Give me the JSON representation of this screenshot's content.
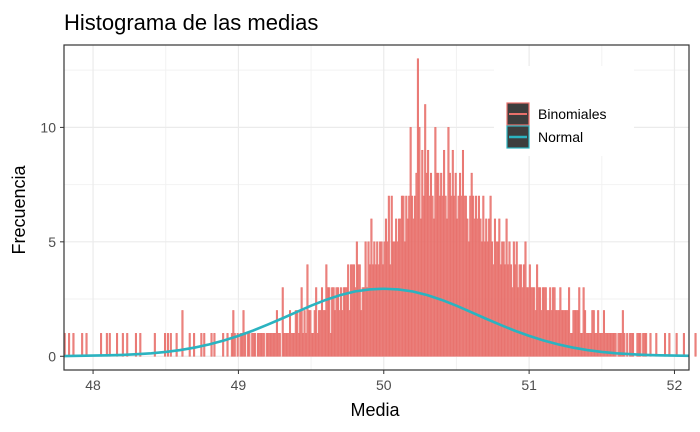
{
  "chart_data": {
    "type": "bar",
    "title": "Histograma de las medias",
    "xlabel": "Media",
    "ylabel": "Frecuencia",
    "xlim": [
      47.8,
      52.1
    ],
    "ylim": [
      -0.6,
      13.6
    ],
    "x_ticks": [
      "48",
      "49",
      "50",
      "51",
      "52"
    ],
    "y_ticks": [
      "0",
      "5",
      "10"
    ],
    "grid": true,
    "legend_position": "top-right",
    "legend": [
      "Binomiales",
      "Normal"
    ],
    "series": [
      {
        "name": "Binomiales",
        "kind": "histogram",
        "color": "#e8706b",
        "bin_width": 0.01,
        "x_start": 47.8,
        "counts": [
          1,
          0,
          0,
          1,
          0,
          0,
          1,
          0,
          0,
          0,
          0,
          0,
          1,
          0,
          0,
          1,
          0,
          0,
          0,
          0,
          0,
          0,
          0,
          0,
          0,
          1,
          0,
          0,
          0,
          1,
          0,
          1,
          0,
          0,
          0,
          0,
          1,
          0,
          0,
          0,
          1,
          0,
          0,
          1,
          0,
          0,
          0,
          0,
          0,
          1,
          0,
          0,
          1,
          0,
          0,
          0,
          0,
          0,
          0,
          0,
          0,
          0,
          1,
          0,
          0,
          0,
          0,
          0,
          0,
          1,
          0,
          1,
          0,
          1,
          0,
          0,
          0,
          1,
          0,
          0,
          0,
          2,
          0,
          0,
          0,
          0,
          1,
          0,
          0,
          1,
          0,
          0,
          0,
          0,
          1,
          0,
          1,
          0,
          0,
          0,
          0,
          1,
          0,
          1,
          0,
          0,
          0,
          0,
          0,
          1,
          0,
          0,
          1,
          0,
          0,
          1,
          2,
          1,
          0,
          1,
          0,
          1,
          1,
          2,
          1,
          0,
          1,
          1,
          0,
          1,
          1,
          1,
          0,
          1,
          1,
          1,
          1,
          1,
          0,
          1,
          1,
          1,
          1,
          1,
          1,
          1,
          2,
          1,
          1,
          0,
          3,
          1,
          1,
          1,
          1,
          2,
          1,
          1,
          1,
          2,
          2,
          1,
          2,
          3,
          1,
          2,
          1,
          4,
          2,
          2,
          1,
          1,
          2,
          3,
          1,
          2,
          2,
          3,
          2,
          2,
          4,
          3,
          3,
          1,
          3,
          3,
          2,
          3,
          3,
          2,
          3,
          2,
          3,
          3,
          3,
          4,
          2,
          4,
          4,
          4,
          3,
          5,
          4,
          4,
          2,
          3,
          3,
          5,
          3,
          5,
          4,
          6,
          4,
          5,
          4,
          5,
          4,
          5,
          5,
          4,
          5,
          6,
          5,
          7,
          4,
          7,
          5,
          5,
          6,
          5,
          6,
          6,
          7,
          7,
          5,
          7,
          6,
          7,
          10,
          7,
          6,
          7,
          8,
          13,
          10,
          6,
          9,
          7,
          11,
          8,
          9,
          7,
          8,
          7,
          6,
          10,
          8,
          8,
          7,
          8,
          7,
          9,
          7,
          6,
          10,
          8,
          7,
          9,
          7,
          8,
          6,
          7,
          8,
          7,
          9,
          7,
          7,
          6,
          5,
          7,
          8,
          7,
          6,
          7,
          6,
          7,
          6,
          5,
          7,
          5,
          6,
          5,
          6,
          7,
          5,
          4,
          6,
          5,
          5,
          6,
          4,
          5,
          5,
          4,
          6,
          4,
          5,
          4,
          3,
          5,
          4,
          5,
          3,
          4,
          4,
          3,
          4,
          5,
          3,
          3,
          4,
          3,
          3,
          3,
          2,
          4,
          3,
          3,
          2,
          3,
          3,
          3,
          2,
          2,
          3,
          2,
          3,
          3,
          2,
          2,
          2,
          3,
          2,
          2,
          2,
          2,
          2,
          3,
          1,
          1,
          2,
          2,
          2,
          2,
          3,
          1,
          1,
          3,
          2,
          1,
          1,
          1,
          1,
          2,
          2,
          1,
          1,
          2,
          1,
          1,
          1,
          2,
          1,
          1,
          1,
          1,
          1,
          1,
          1,
          1,
          0,
          1,
          1,
          1,
          2,
          1,
          0,
          1,
          0,
          1,
          1,
          1,
          0,
          0,
          1,
          1,
          1,
          0,
          1,
          1,
          1,
          0,
          0,
          1,
          0,
          0,
          0,
          1,
          0,
          0,
          0,
          0,
          0,
          1,
          0,
          0,
          1,
          0,
          0,
          0,
          0,
          1,
          0,
          0,
          0,
          0,
          1,
          0,
          0,
          0,
          0,
          0,
          0,
          0,
          1,
          0,
          0,
          0,
          0,
          0,
          0,
          0,
          0,
          0,
          1,
          0,
          0,
          0,
          1
        ]
      },
      {
        "name": "Normal",
        "kind": "density-curve",
        "color": "#2bb3c0",
        "x": [
          47.8,
          47.9,
          48.0,
          48.1,
          48.2,
          48.3,
          48.4,
          48.5,
          48.6,
          48.7,
          48.8,
          48.9,
          49.0,
          49.1,
          49.2,
          49.3,
          49.4,
          49.5,
          49.6,
          49.7,
          49.8,
          49.9,
          50.0,
          50.1,
          50.2,
          50.3,
          50.4,
          50.5,
          50.6,
          50.7,
          50.8,
          50.9,
          51.0,
          51.1,
          51.2,
          51.3,
          51.4,
          51.5,
          51.6,
          51.7,
          51.8,
          51.9,
          52.0,
          52.1
        ],
        "y": [
          0.01,
          0.02,
          0.03,
          0.04,
          0.06,
          0.09,
          0.13,
          0.19,
          0.27,
          0.38,
          0.52,
          0.69,
          0.89,
          1.12,
          1.38,
          1.65,
          1.93,
          2.21,
          2.46,
          2.67,
          2.83,
          2.92,
          2.95,
          2.92,
          2.83,
          2.67,
          2.46,
          2.21,
          1.93,
          1.65,
          1.38,
          1.12,
          0.89,
          0.69,
          0.52,
          0.38,
          0.27,
          0.19,
          0.13,
          0.09,
          0.06,
          0.04,
          0.03,
          0.02
        ]
      }
    ]
  }
}
